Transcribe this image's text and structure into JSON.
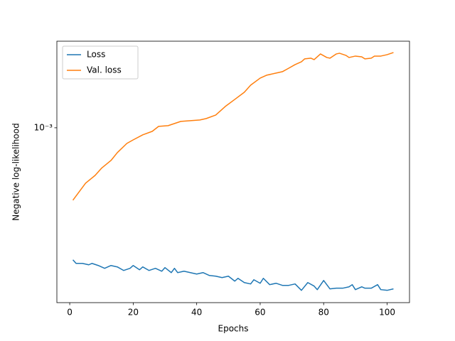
{
  "chart_data": {
    "type": "line",
    "xlabel": "Epochs",
    "ylabel": "Negative log-likelihood",
    "xlim": [
      -4.05,
      107.05
    ],
    "xticks": [
      0,
      20,
      40,
      60,
      80,
      100
    ],
    "ylim": [
      0.000151,
      0.00255
    ],
    "yticks": [
      {
        "value": 0.001,
        "label": "10⁻³"
      }
    ],
    "yscale": "log",
    "legend": "upper left",
    "series": [
      {
        "name": "Loss",
        "color": "#1f77b4",
        "x": [
          1,
          2,
          4,
          6,
          7,
          9,
          11,
          13,
          15,
          17,
          19,
          20,
          22,
          23,
          25,
          27,
          29,
          30,
          32,
          33,
          34,
          36,
          38,
          40,
          42,
          44,
          46,
          48,
          50,
          52,
          53,
          55,
          57,
          58,
          60,
          61,
          63,
          65,
          67,
          69,
          71,
          73,
          75,
          77,
          78,
          80,
          82,
          84,
          86,
          88,
          89,
          90,
          92,
          93,
          95,
          97,
          98,
          100,
          102
        ],
        "values": [
          0.0002399,
          0.0002308,
          0.0002308,
          0.0002273,
          0.0002308,
          0.0002256,
          0.0002188,
          0.0002256,
          0.0002222,
          0.0002138,
          0.0002188,
          0.0002256,
          0.0002154,
          0.0002222,
          0.0002138,
          0.0002188,
          0.0002121,
          0.0002205,
          0.0002089,
          0.0002188,
          0.0002089,
          0.0002121,
          0.0002089,
          0.0002057,
          0.0002089,
          0.0002025,
          0.000201,
          0.0001979,
          0.000201,
          0.0001905,
          0.0001964,
          0.0001876,
          0.0001848,
          0.0001934,
          0.0001862,
          0.0001964,
          0.0001834,
          0.0001862,
          0.000182,
          0.000182,
          0.0001848,
          0.0001725,
          0.0001876,
          0.0001806,
          0.0001738,
          0.0001919,
          0.0001752,
          0.0001765,
          0.0001765,
          0.0001792,
          0.0001834,
          0.0001738,
          0.0001792,
          0.0001765,
          0.0001765,
          0.0001834,
          0.0001738,
          0.0001725,
          0.0001752
        ]
      },
      {
        "name": "Val. loss",
        "color": "#ff7f0e",
        "x": [
          1,
          3,
          5,
          8,
          10,
          13,
          15,
          18,
          20,
          23,
          26,
          28,
          31,
          35,
          38,
          41,
          43,
          46,
          49,
          52,
          55,
          57,
          60,
          62,
          65,
          67,
          69,
          71,
          73,
          74,
          76,
          77,
          79,
          81,
          82,
          84,
          85,
          87,
          88,
          90,
          92,
          93,
          95,
          96,
          98,
          100,
          102
        ],
        "values": [
          0.0004571,
          0.0005012,
          0.0005495,
          0.0005977,
          0.0006457,
          0.0007025,
          0.0007647,
          0.0008446,
          0.0008777,
          0.0009262,
          0.0009623,
          0.0010155,
          0.0010233,
          0.0010715,
          0.0010797,
          0.0010882,
          0.001105,
          0.001148,
          0.001259,
          0.001359,
          0.001468,
          0.001585,
          0.001711,
          0.001765,
          0.001806,
          0.001834,
          0.001905,
          0.00198,
          0.002042,
          0.002106,
          0.002122,
          0.002089,
          0.002222,
          0.002138,
          0.002122,
          0.002222,
          0.002239,
          0.002188,
          0.002138,
          0.002171,
          0.002154,
          0.002106,
          0.002122,
          0.002171,
          0.002171,
          0.002205,
          0.002256
        ]
      }
    ]
  }
}
